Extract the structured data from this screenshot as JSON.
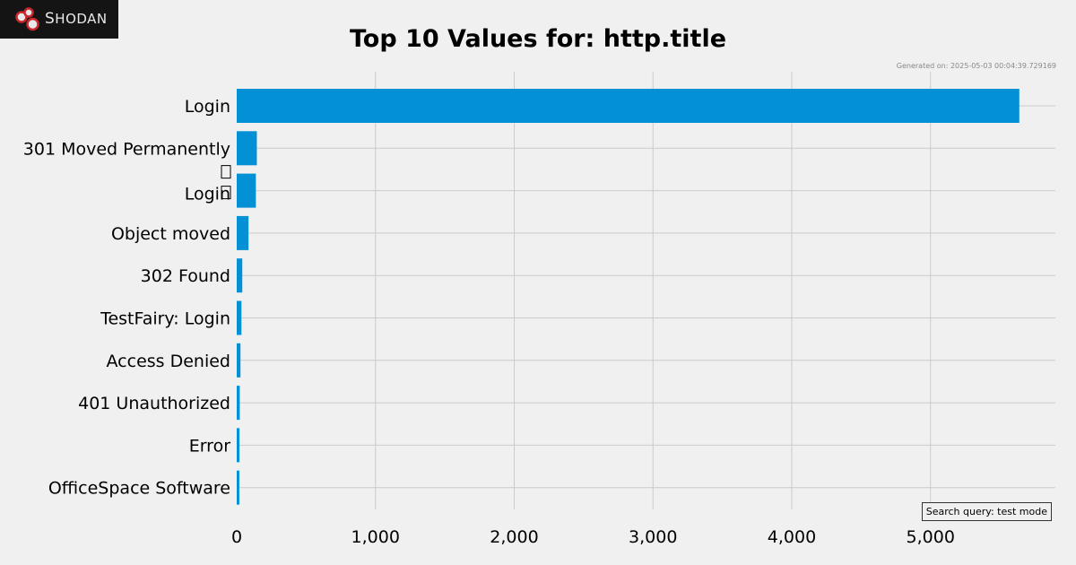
{
  "brand": {
    "name": "Shodan",
    "logo_initial": "S",
    "logo_rest": "HODAN"
  },
  "generated_text": "Generated on: 2025-05-03 00:04:39.729169",
  "search_query_text": "Search query: test mode",
  "colors": {
    "bar": "#0390d4",
    "background": "#f0f0f0",
    "grid": "#cbcbcb"
  },
  "chart_data": {
    "type": "bar",
    "orientation": "horizontal",
    "title": "Top 10 Values for: http.title",
    "xlabel": "",
    "ylabel": "",
    "categories": [
      "Login",
      "301 Moved Permanently",
      "\n Login\n",
      "Object moved",
      "302 Found",
      "TestFairy: Login",
      "Access Denied",
      "401 Unauthorized",
      "Error",
      "OfficeSpace Software"
    ],
    "category_lines": [
      [
        "Login"
      ],
      [
        "301 Moved Permanently"
      ],
      [
        "",
        "Login"
      ],
      [
        "Object moved"
      ],
      [
        "302 Found"
      ],
      [
        "TestFairy: Login"
      ],
      [
        "Access Denied"
      ],
      [
        "401 Unauthorized"
      ],
      [
        "Error"
      ],
      [
        "OfficeSpace Software"
      ]
    ],
    "values": [
      5640,
      145,
      138,
      85,
      40,
      34,
      27,
      22,
      20,
      19
    ],
    "xlim": [
      0,
      5900
    ],
    "xticks": [
      0,
      1000,
      2000,
      3000,
      4000,
      5000
    ],
    "xtick_labels": [
      "0",
      "1,000",
      "2,000",
      "3,000",
      "4,000",
      "5,000"
    ],
    "grid": true
  }
}
